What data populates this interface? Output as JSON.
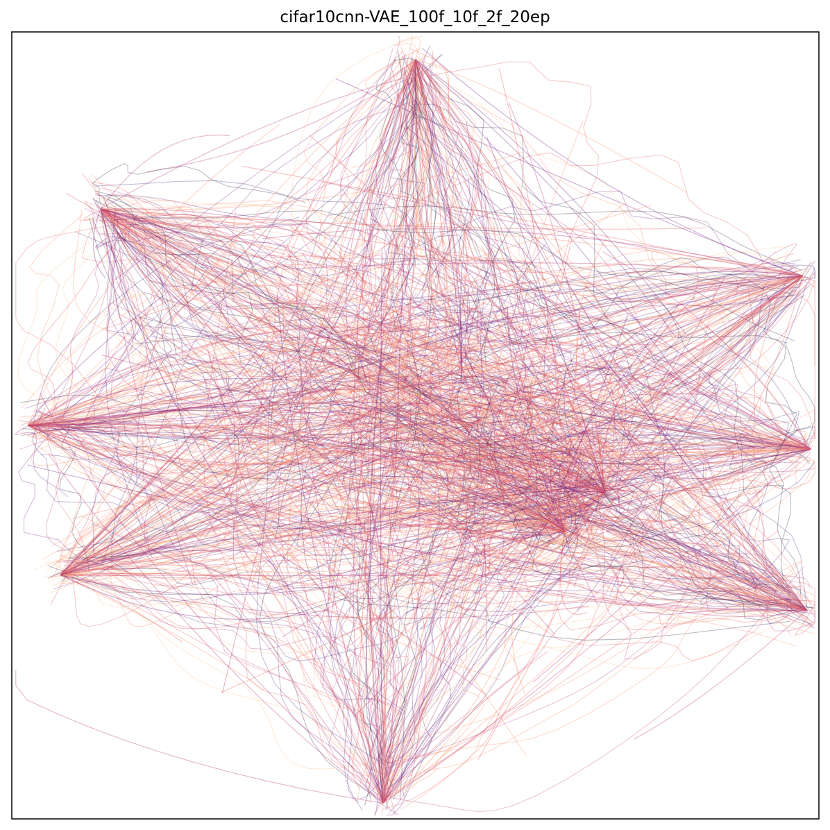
{
  "chart_data": {
    "type": "line",
    "title": "cifar10cnn-VAE_100f_10f_2f_20ep",
    "xlabel": "",
    "ylabel": "",
    "xticks": [],
    "yticks": [],
    "grid": false,
    "legend": "none",
    "xlim": [
      -1.0,
      1.0
    ],
    "ylim": [
      -1.0,
      1.0
    ],
    "description_of_marks": "dense bundle of semi-transparent curves radiating from a central hub toward eight tips",
    "center": [
      0.02,
      0.03
    ],
    "arms": [
      {
        "name": "top",
        "tip": [
          0.0,
          0.93
        ]
      },
      {
        "name": "upper-left",
        "tip": [
          -0.78,
          0.55
        ]
      },
      {
        "name": "upper-right",
        "tip": [
          0.96,
          0.38
        ]
      },
      {
        "name": "middle-left",
        "tip": [
          -0.96,
          0.0
        ]
      },
      {
        "name": "middle-right",
        "tip": [
          0.98,
          -0.06
        ]
      },
      {
        "name": "inner-right",
        "tip": [
          0.47,
          -0.17
        ]
      },
      {
        "name": "lower-left",
        "tip": [
          -0.88,
          -0.38
        ]
      },
      {
        "name": "lower-right",
        "tip": [
          0.97,
          -0.47
        ]
      },
      {
        "name": "bottom",
        "tip": [
          -0.08,
          -0.96
        ]
      },
      {
        "name": "inner-lower-right",
        "tip": [
          0.37,
          -0.27
        ]
      }
    ],
    "colormap": [
      "#0d0829",
      "#3b0f70",
      "#721f81",
      "#b73779",
      "#e85a5a",
      "#f8906a",
      "#fdc28c"
    ],
    "series_count": 1
  }
}
